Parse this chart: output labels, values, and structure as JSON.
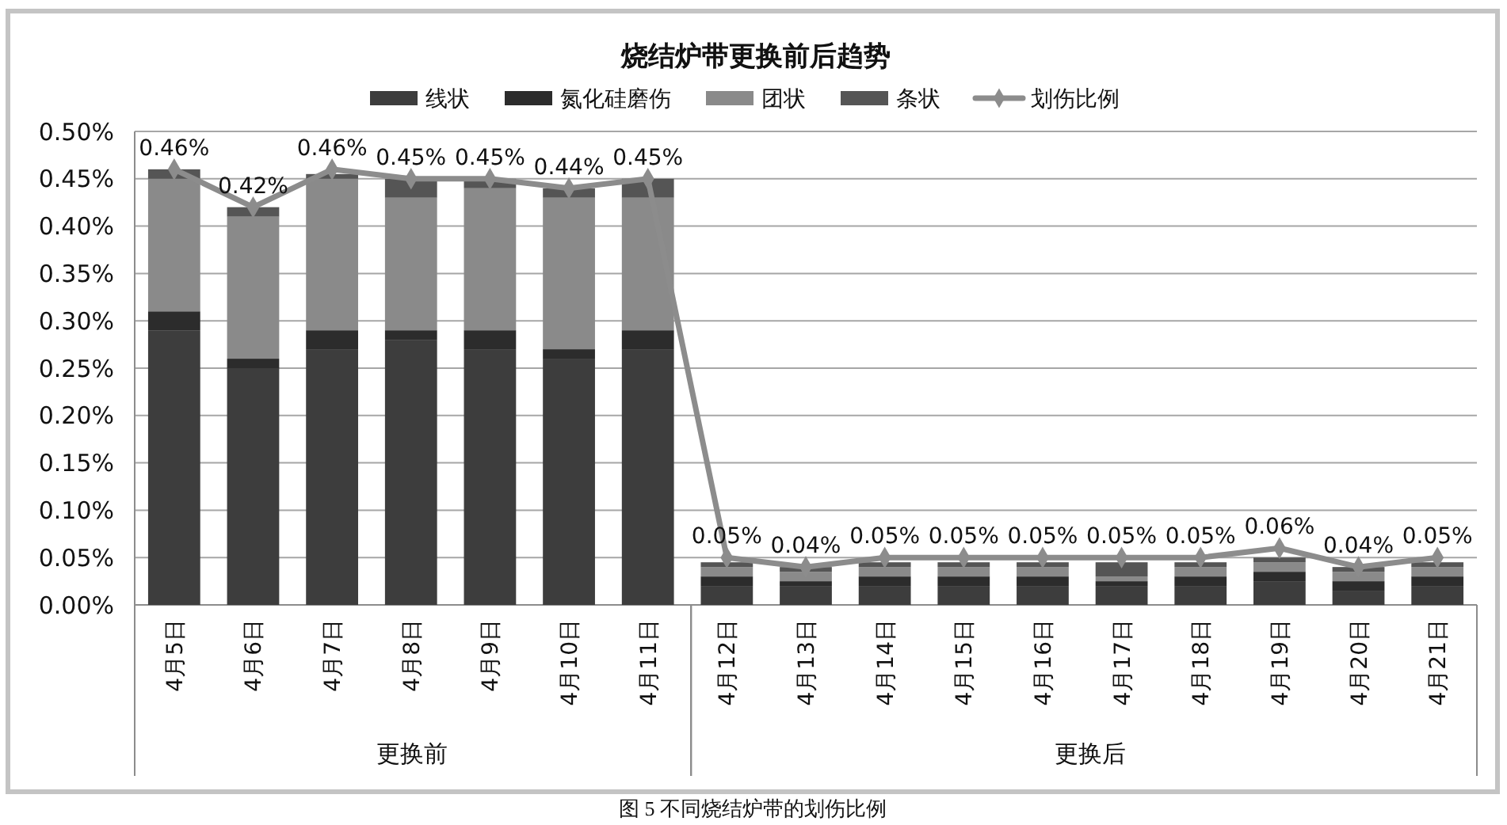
{
  "chart_data": {
    "type": "bar",
    "title": "烧结炉带更换前后趋势",
    "categories": [
      "4月5日",
      "4月6日",
      "4月7日",
      "4月8日",
      "4月9日",
      "4月10日",
      "4月11日",
      "4月12日",
      "4月13日",
      "4月14日",
      "4月15日",
      "4月16日",
      "4月17日",
      "4月18日",
      "4月19日",
      "4月20日",
      "4月21日"
    ],
    "stacked": true,
    "series": [
      {
        "name": "线状",
        "color": "#3d3d3d",
        "values": [
          0.29,
          0.25,
          0.27,
          0.28,
          0.27,
          0.26,
          0.27,
          0.02,
          0.02,
          0.02,
          0.02,
          0.02,
          0.02,
          0.02,
          0.025,
          0.015,
          0.02
        ]
      },
      {
        "name": "氮化硅磨伤",
        "color": "#2c2c2c",
        "values": [
          0.02,
          0.01,
          0.02,
          0.01,
          0.02,
          0.01,
          0.02,
          0.01,
          0.005,
          0.01,
          0.01,
          0.01,
          0.005,
          0.01,
          0.01,
          0.01,
          0.01
        ]
      },
      {
        "name": "团状",
        "color": "#8a8a8a",
        "values": [
          0.14,
          0.15,
          0.16,
          0.14,
          0.15,
          0.16,
          0.14,
          0.01,
          0.01,
          0.01,
          0.01,
          0.01,
          0.005,
          0.01,
          0.01,
          0.01,
          0.01
        ]
      },
      {
        "name": "条状",
        "color": "#555555",
        "values": [
          0.01,
          0.01,
          0.005,
          0.02,
          0.01,
          0.01,
          0.02,
          0.005,
          0.005,
          0.005,
          0.005,
          0.005,
          0.015,
          0.005,
          0.005,
          0.005,
          0.005
        ]
      },
      {
        "name": "划伤比例",
        "type": "line",
        "color": "#8c8c8c",
        "values": [
          0.46,
          0.42,
          0.46,
          0.45,
          0.45,
          0.44,
          0.45,
          0.05,
          0.04,
          0.05,
          0.05,
          0.05,
          0.05,
          0.05,
          0.06,
          0.04,
          0.05
        ],
        "value_labels": [
          "0.46%",
          "0.42%",
          "0.46%",
          "0.45%",
          "0.45%",
          "0.44%",
          "0.45%",
          "0.05%",
          "0.04%",
          "0.05%",
          "0.05%",
          "0.05%",
          "0.05%",
          "0.05%",
          "0.06%",
          "0.04%",
          "0.05%"
        ]
      }
    ],
    "ylim": [
      0,
      0.5
    ],
    "yticks": [
      {
        "value": 0,
        "label": "0.00%"
      },
      {
        "value": 0.05,
        "label": "0.05%"
      },
      {
        "value": 0.1,
        "label": "0.10%"
      },
      {
        "value": 0.15,
        "label": "0.15%"
      },
      {
        "value": 0.2,
        "label": "0.20%"
      },
      {
        "value": 0.25,
        "label": "0.25%"
      },
      {
        "value": 0.3,
        "label": "0.30%"
      },
      {
        "value": 0.35,
        "label": "0.35%"
      },
      {
        "value": 0.4,
        "label": "0.40%"
      },
      {
        "value": 0.45,
        "label": "0.45%"
      },
      {
        "value": 0.5,
        "label": "0.50%"
      }
    ],
    "grid": "y",
    "legend": "top",
    "marker": "diamond",
    "annotations": [
      "更换前",
      "更换后",
      "图 5 不同烧结炉带的划伤比例"
    ]
  }
}
